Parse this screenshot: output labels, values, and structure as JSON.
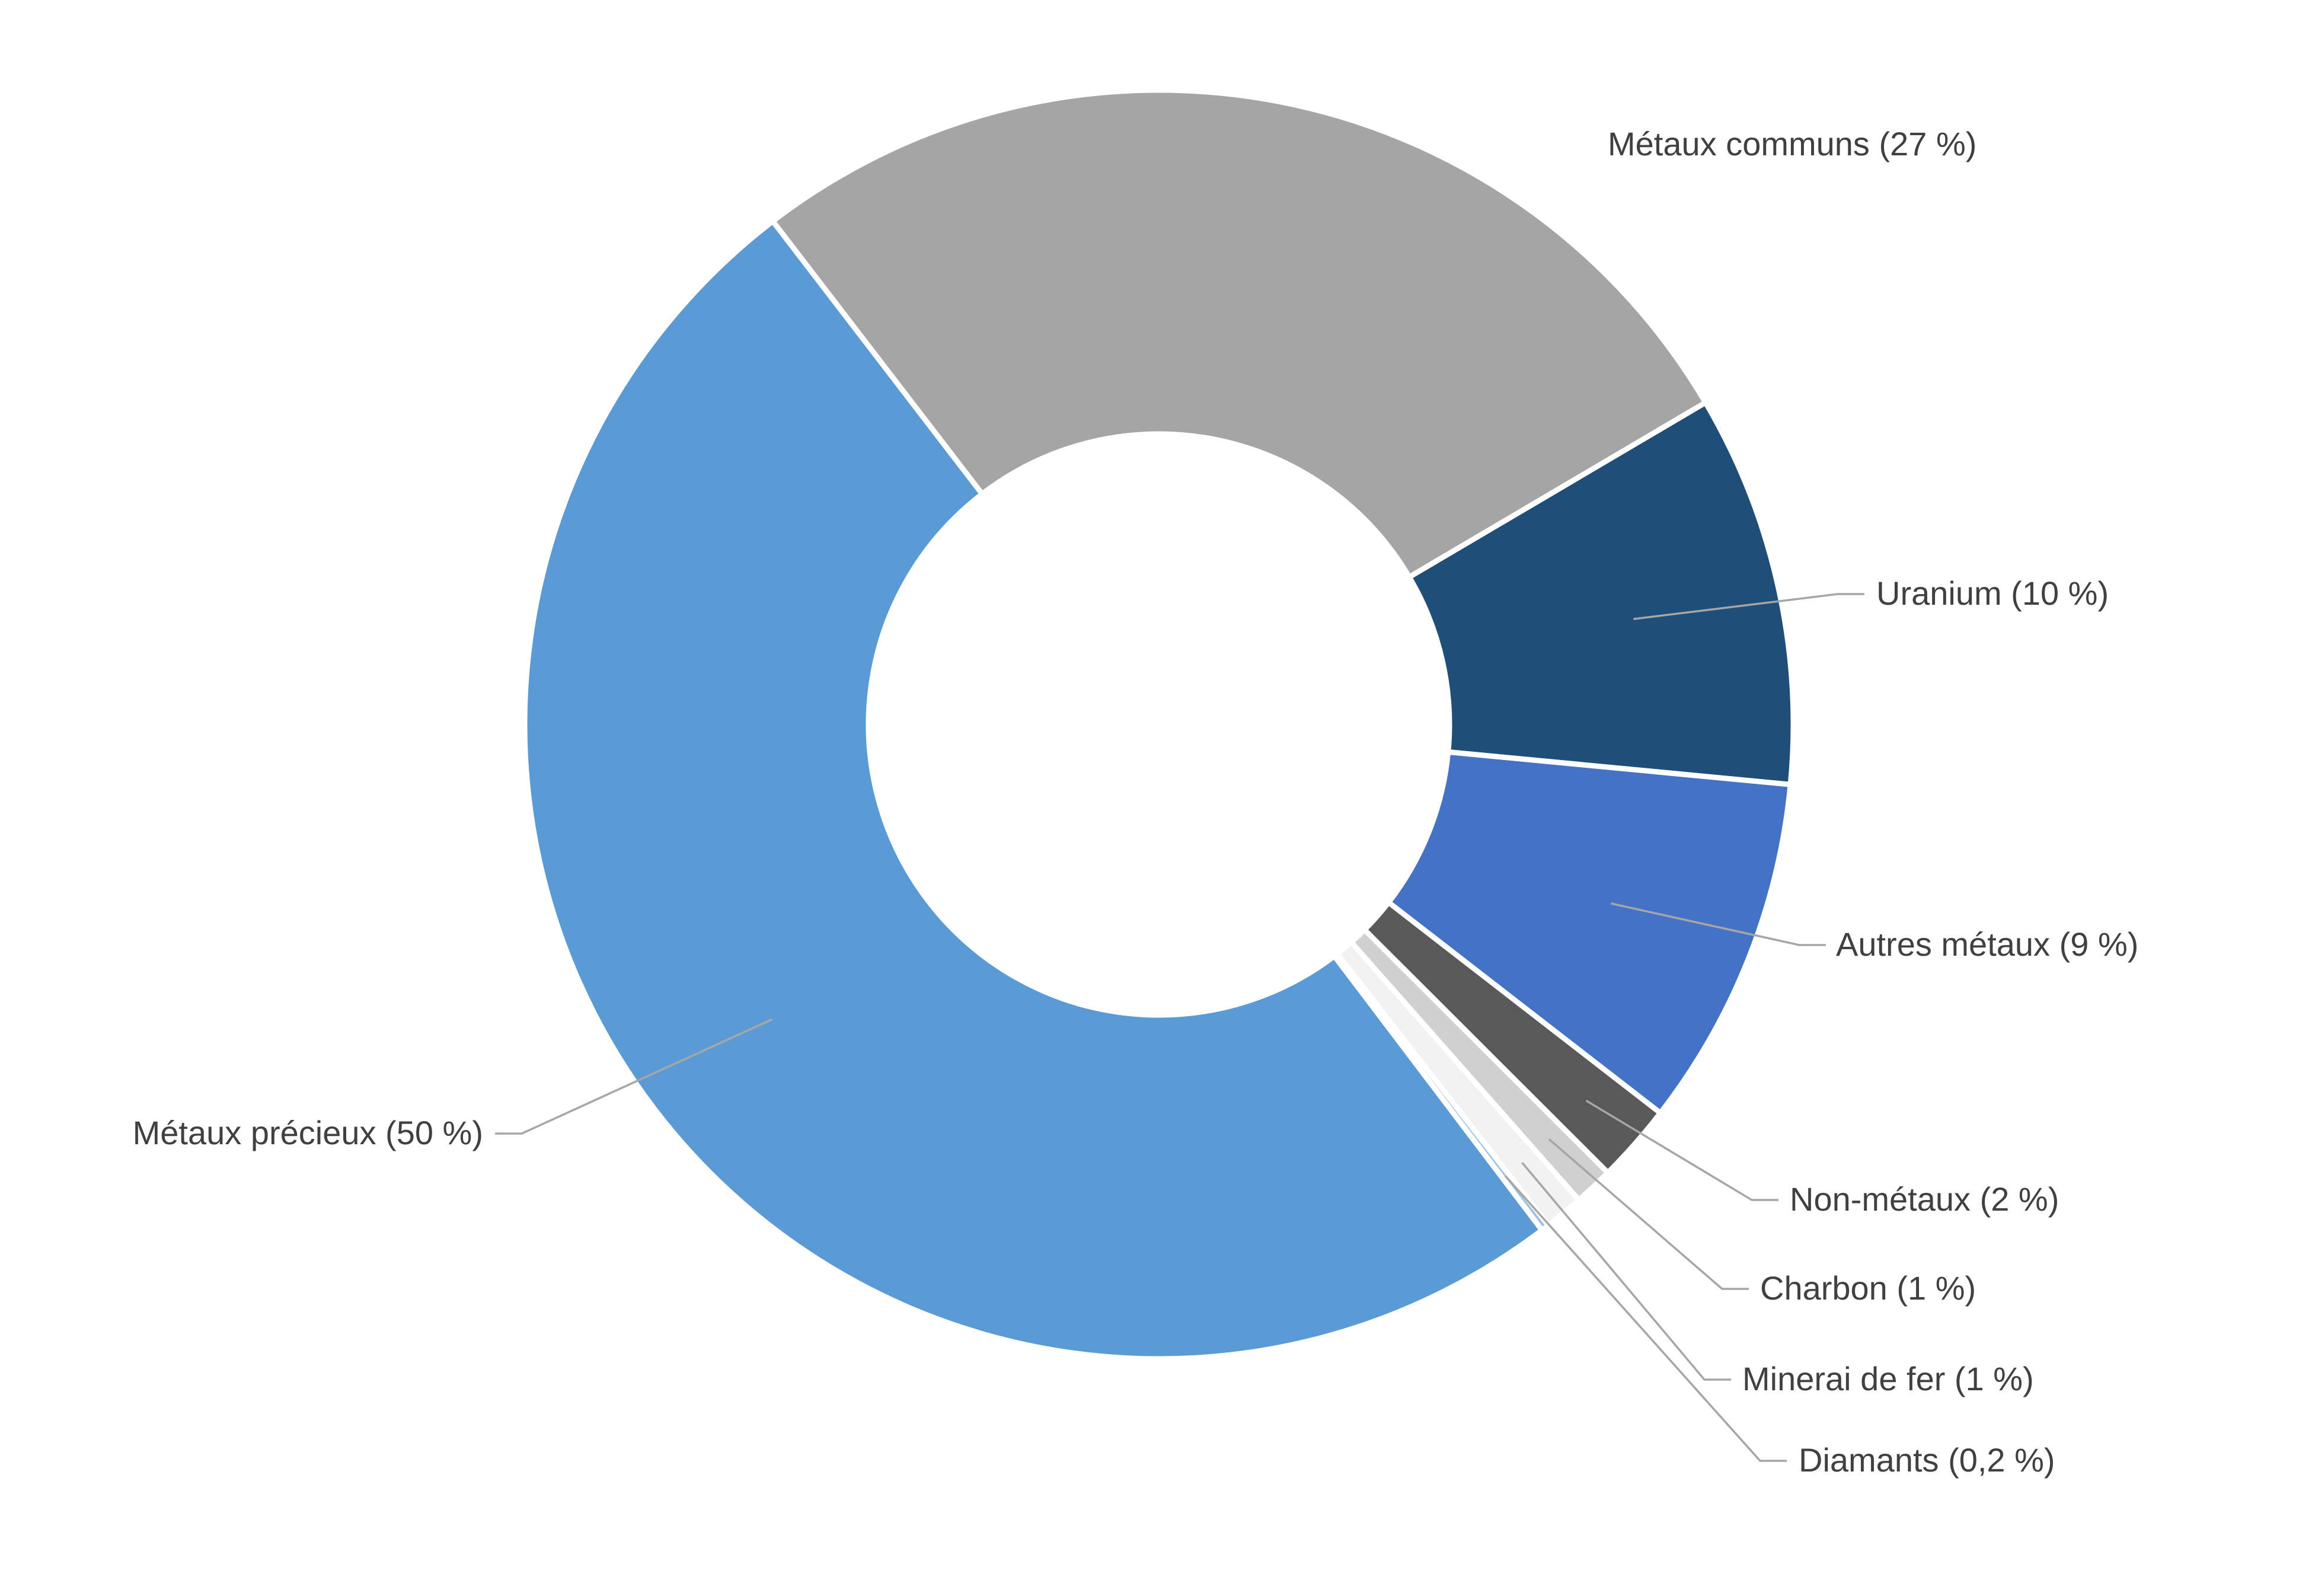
{
  "chart_data": {
    "type": "pie",
    "donut": true,
    "slices": [
      {
        "name": "Métaux communs",
        "value": 27,
        "label": "Métaux communs (27 %)",
        "color": "#a5a5a5"
      },
      {
        "name": "Uranium",
        "value": 10,
        "label": "Uranium (10 %)",
        "color": "#1f4e79"
      },
      {
        "name": "Autres métaux",
        "value": 9,
        "label": "Autres métaux (9 %)",
        "color": "#4472c4"
      },
      {
        "name": "Non-métaux",
        "value": 2,
        "label": "Non-métaux (2 %)",
        "color": "#595959"
      },
      {
        "name": "Charbon",
        "value": 1,
        "label": "Charbon (1 %)",
        "color": "#d0d0d0"
      },
      {
        "name": "Minerai de fer",
        "value": 1,
        "label": "Minerai de fer (1 %)",
        "color": "#f2f2f2"
      },
      {
        "name": "Diamants",
        "value": 0.2,
        "label": "Diamants (0,2 %)",
        "color": "#9dc3e6"
      },
      {
        "name": "Métaux précieux",
        "value": 50,
        "label": "Métaux précieux (50 %)",
        "color": "#5b9bd5"
      }
    ],
    "legend": "none"
  }
}
